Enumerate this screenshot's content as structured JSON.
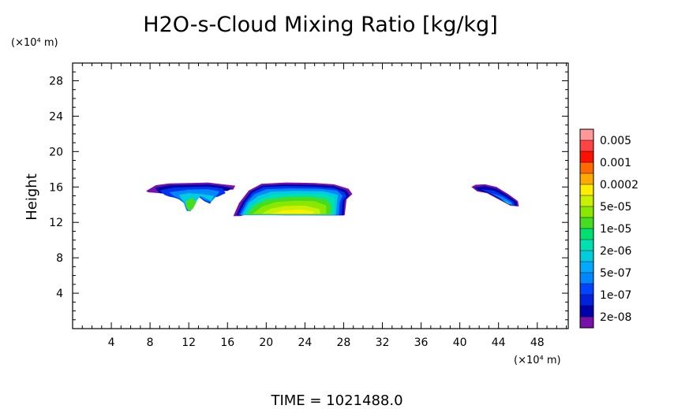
{
  "chart_data": {
    "type": "heatmap",
    "title": "H2O-s-Cloud Mixing Ratio [kg/kg]",
    "ylabel": "Height",
    "x_unit": "(×10⁴ m)",
    "y_unit": "(×10⁴ m)",
    "footer": "TIME  =  1021488.0",
    "xlim": [
      0,
      51.2
    ],
    "ylim": [
      0,
      30
    ],
    "x_ticks": [
      "4",
      "8",
      "12",
      "16",
      "20",
      "24",
      "28",
      "32",
      "36",
      "40",
      "44",
      "48"
    ],
    "x_tick_values": [
      4,
      8,
      12,
      16,
      20,
      24,
      28,
      32,
      36,
      40,
      44,
      48
    ],
    "y_ticks": [
      "4",
      "8",
      "12",
      "16",
      "20",
      "24",
      "28"
    ],
    "y_tick_values": [
      4,
      8,
      12,
      16,
      20,
      24,
      28
    ],
    "colorbar": {
      "labels": [
        "0.005",
        "0.001",
        "0.0002",
        "5e-05",
        "1e-05",
        "2e-06",
        "5e-07",
        "1e-07",
        "2e-08"
      ],
      "colors": [
        "#ff9999",
        "#ff4444",
        "#ff1100",
        "#ff6a00",
        "#ffaa00",
        "#ffee00",
        "#c8f000",
        "#88e800",
        "#44dd22",
        "#00e070",
        "#00e0b0",
        "#00ccdd",
        "#00aaff",
        "#0088ff",
        "#0044ff",
        "#0022dd",
        "#0000aa",
        "#7711aa"
      ]
    },
    "regions": [
      {
        "name": "cloud-west",
        "x_range": [
          7.6,
          17.0
        ],
        "y_range": [
          12.9,
          16.5
        ],
        "layers": [
          {
            "color": "#7711aa",
            "outline": [
              [
                7.6,
                15.55
              ],
              [
                8.6,
                16.2
              ],
              [
                10,
                16.4
              ],
              [
                12,
                16.45
              ],
              [
                14,
                16.5
              ],
              [
                15.5,
                16.3
              ],
              [
                16.8,
                16.15
              ],
              [
                16.6,
                15.7
              ],
              [
                16,
                15.7
              ],
              [
                14,
                15.75
              ],
              [
                12,
                15.6
              ],
              [
                10,
                15.3
              ],
              [
                9,
                15.3
              ],
              [
                7.8,
                15.4
              ]
            ]
          },
          {
            "color": "#0000aa",
            "outline": [
              [
                8.5,
                15.9
              ],
              [
                10,
                16.2
              ],
              [
                12,
                16.25
              ],
              [
                14,
                16.3
              ],
              [
                15.5,
                16.1
              ],
              [
                16.5,
                15.85
              ],
              [
                16,
                15.55
              ],
              [
                14,
                15.5
              ],
              [
                12,
                15.35
              ],
              [
                10,
                15.15
              ],
              [
                9,
                15.3
              ]
            ]
          },
          {
            "color": "#0033ee",
            "outline": [
              [
                9,
                15.6
              ],
              [
                10.5,
                15.95
              ],
              [
                12,
                16.0
              ],
              [
                14,
                16.05
              ],
              [
                15.5,
                15.85
              ],
              [
                15.8,
                15.3
              ],
              [
                15,
                14.9
              ],
              [
                14.5,
                14.8
              ],
              [
                14.2,
                14.1
              ],
              [
                13.6,
                14.4
              ],
              [
                13,
                14.9
              ],
              [
                12.7,
                14.3
              ],
              [
                12.2,
                13.3
              ],
              [
                11.8,
                13.3
              ],
              [
                11.6,
                14.1
              ],
              [
                11,
                14.6
              ],
              [
                10.5,
                14.8
              ],
              [
                10,
                14.9
              ],
              [
                9.5,
                15.1
              ]
            ]
          },
          {
            "color": "#0088ff",
            "outline": [
              [
                10,
                15.4
              ],
              [
                12,
                15.7
              ],
              [
                14,
                15.75
              ],
              [
                15.2,
                15.5
              ],
              [
                14.8,
                14.9
              ],
              [
                14.3,
                14.3
              ],
              [
                13.7,
                14.5
              ],
              [
                13,
                15
              ],
              [
                12.5,
                13.8
              ],
              [
                12.1,
                13.25
              ],
              [
                11.7,
                13.5
              ],
              [
                11.5,
                14.2
              ],
              [
                11,
                14.7
              ],
              [
                10.5,
                14.95
              ]
            ]
          },
          {
            "color": "#00ccdd",
            "outline": [
              [
                11,
                15.1
              ],
              [
                12,
                15.3
              ],
              [
                13.3,
                15.2
              ],
              [
                14.6,
                15
              ],
              [
                14.3,
                14.4
              ],
              [
                13.8,
                14.7
              ],
              [
                13.2,
                15
              ],
              [
                12.6,
                14.1
              ],
              [
                12.2,
                13.35
              ],
              [
                11.8,
                13.55
              ],
              [
                11.6,
                14.2
              ],
              [
                11.2,
                14.7
              ]
            ]
          },
          {
            "color": "#44dd22",
            "outline": [
              [
                11.7,
                14.4
              ],
              [
                12.3,
                14.8
              ],
              [
                12.8,
                14.3
              ],
              [
                12.4,
                13.5
              ],
              [
                12.0,
                13.3
              ],
              [
                11.75,
                13.7
              ]
            ]
          }
        ]
      },
      {
        "name": "cloud-central",
        "x_range": [
          16.6,
          28.9
        ],
        "y_range": [
          12.7,
          16.5
        ],
        "layers": [
          {
            "color": "#7711aa",
            "outline": [
              [
                16.6,
                12.7
              ],
              [
                17.2,
                14.2
              ],
              [
                18.2,
                15.6
              ],
              [
                19.5,
                16.35
              ],
              [
                22,
                16.5
              ],
              [
                25,
                16.45
              ],
              [
                27,
                16.3
              ],
              [
                28.5,
                15.8
              ],
              [
                28.9,
                15.2
              ],
              [
                28.3,
                14.6
              ],
              [
                28.1,
                12.8
              ],
              [
                22,
                12.8
              ],
              [
                17.8,
                12.85
              ],
              [
                17.3,
                12.7
              ]
            ]
          },
          {
            "color": "#0000aa",
            "outline": [
              [
                16.9,
                12.8
              ],
              [
                17.5,
                14.2
              ],
              [
                18.4,
                15.5
              ],
              [
                19.6,
                16.15
              ],
              [
                22,
                16.3
              ],
              [
                25,
                16.25
              ],
              [
                27,
                16.1
              ],
              [
                28.3,
                15.6
              ],
              [
                28.6,
                15.1
              ],
              [
                28.1,
                14.5
              ],
              [
                28,
                12.8
              ],
              [
                17.6,
                12.85
              ]
            ]
          },
          {
            "color": "#0033ee",
            "outline": [
              [
                17.1,
                12.85
              ],
              [
                17.8,
                14.3
              ],
              [
                18.6,
                15.4
              ],
              [
                19.7,
                16.0
              ],
              [
                22,
                16.1
              ],
              [
                25,
                16.05
              ],
              [
                27,
                15.9
              ],
              [
                28.1,
                15.4
              ],
              [
                28.3,
                14.9
              ],
              [
                27.9,
                14.4
              ],
              [
                27.8,
                12.85
              ]
            ]
          },
          {
            "color": "#0088ff",
            "outline": [
              [
                17.3,
                12.85
              ],
              [
                18.0,
                14.3
              ],
              [
                18.8,
                15.2
              ],
              [
                20,
                15.75
              ],
              [
                22.5,
                15.85
              ],
              [
                25.5,
                15.8
              ],
              [
                27.3,
                15.6
              ],
              [
                27.9,
                15.0
              ],
              [
                27.6,
                14.3
              ],
              [
                27.5,
                12.85
              ]
            ]
          },
          {
            "color": "#00ccdd",
            "outline": [
              [
                17.5,
                12.85
              ],
              [
                18.2,
                14.2
              ],
              [
                19.2,
                15.0
              ],
              [
                20.5,
                15.45
              ],
              [
                23,
                15.55
              ],
              [
                26,
                15.5
              ],
              [
                27.4,
                15.1
              ],
              [
                27.3,
                14.2
              ],
              [
                27.2,
                12.85
              ]
            ]
          },
          {
            "color": "#00e0b0",
            "outline": [
              [
                17.7,
                12.85
              ],
              [
                18.5,
                14.0
              ],
              [
                19.6,
                14.75
              ],
              [
                21,
                15.15
              ],
              [
                23.5,
                15.25
              ],
              [
                26,
                15.2
              ],
              [
                27.1,
                14.7
              ],
              [
                27,
                12.85
              ]
            ]
          },
          {
            "color": "#44dd22",
            "outline": [
              [
                18,
                12.9
              ],
              [
                18.8,
                13.9
              ],
              [
                20,
                14.55
              ],
              [
                22,
                14.85
              ],
              [
                24.5,
                14.9
              ],
              [
                26.3,
                14.6
              ],
              [
                26.8,
                13.7
              ],
              [
                26.6,
                12.9
              ]
            ]
          },
          {
            "color": "#88e800",
            "outline": [
              [
                18.6,
                12.95
              ],
              [
                19.6,
                13.8
              ],
              [
                21,
                14.3
              ],
              [
                23,
                14.45
              ],
              [
                25,
                14.4
              ],
              [
                26.2,
                13.9
              ],
              [
                26.2,
                12.95
              ]
            ]
          },
          {
            "color": "#c8f000",
            "outline": [
              [
                19.5,
                12.95
              ],
              [
                20.5,
                13.55
              ],
              [
                22,
                13.85
              ],
              [
                24,
                13.9
              ],
              [
                25.5,
                13.5
              ],
              [
                25.6,
                12.95
              ]
            ]
          },
          {
            "color": "#ffee00",
            "outline": [
              [
                20.5,
                12.95
              ],
              [
                21.8,
                13.35
              ],
              [
                23.5,
                13.45
              ],
              [
                25,
                13.2
              ],
              [
                24.8,
                12.95
              ]
            ]
          }
        ]
      },
      {
        "name": "cloud-east",
        "x_range": [
          41.2,
          46.1
        ],
        "y_range": [
          13.8,
          16.3
        ],
        "layers": [
          {
            "color": "#7711aa",
            "outline": [
              [
                41.2,
                16.0
              ],
              [
                41.6,
                16.25
              ],
              [
                42.6,
                16.3
              ],
              [
                43.8,
                16.0
              ],
              [
                45.0,
                15.2
              ],
              [
                46.0,
                14.4
              ],
              [
                46.1,
                13.8
              ],
              [
                45.2,
                13.9
              ],
              [
                44.0,
                14.6
              ],
              [
                42.8,
                15.3
              ],
              [
                41.8,
                15.5
              ]
            ]
          },
          {
            "color": "#0000aa",
            "outline": [
              [
                41.5,
                15.95
              ],
              [
                42.6,
                16.1
              ],
              [
                43.8,
                15.8
              ],
              [
                45,
                15
              ],
              [
                45.9,
                14.3
              ],
              [
                45.9,
                13.85
              ],
              [
                45.2,
                14
              ],
              [
                44,
                14.7
              ],
              [
                42.9,
                15.35
              ],
              [
                41.9,
                15.6
              ]
            ]
          },
          {
            "color": "#0033ee",
            "outline": [
              [
                42.2,
                15.75
              ],
              [
                43.5,
                15.6
              ],
              [
                44.6,
                15.0
              ],
              [
                45.6,
                14.3
              ],
              [
                45.7,
                13.9
              ],
              [
                45.1,
                14.05
              ],
              [
                44.1,
                14.8
              ],
              [
                43,
                15.35
              ]
            ]
          },
          {
            "color": "#0088ff",
            "outline": [
              [
                43.2,
                15.3
              ],
              [
                44.4,
                14.9
              ],
              [
                45.3,
                14.3
              ],
              [
                45.5,
                13.95
              ],
              [
                45.0,
                14.1
              ],
              [
                44.1,
                14.75
              ]
            ]
          },
          {
            "color": "#00ccdd",
            "outline": [
              [
                44.3,
                14.6
              ],
              [
                45.2,
                14.2
              ],
              [
                45.35,
                14.0
              ],
              [
                44.9,
                14.15
              ]
            ]
          }
        ]
      }
    ]
  }
}
